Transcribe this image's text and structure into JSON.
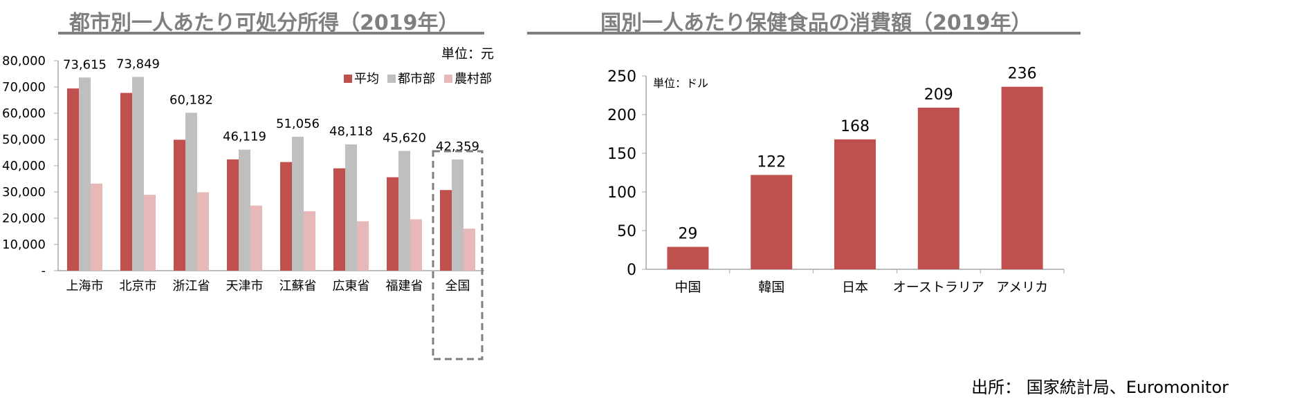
{
  "source": "出所： 国家統計局、Euromonitor",
  "colors": {
    "avg": "#c0504d",
    "urban": "#bfbfbf",
    "rural": "#e6b9b8",
    "axis": "#a6a6a6",
    "title": "#7f7f7f"
  },
  "chart_data": [
    {
      "type": "bar",
      "title": "都市別一人あたり可処分所得（2019年）",
      "unit": "単位：元",
      "categories": [
        "上海市",
        "北京市",
        "浙江省",
        "天津市",
        "江蘇省",
        "広東省",
        "福建省",
        "全国"
      ],
      "series": [
        {
          "name": "平均",
          "values": [
            69442,
            67756,
            49899,
            42404,
            41400,
            39014,
            35616,
            30733
          ]
        },
        {
          "name": "都市部",
          "values": [
            73615,
            73849,
            60182,
            46119,
            51056,
            48118,
            45620,
            42359
          ]
        },
        {
          "name": "農村部",
          "values": [
            33195,
            28928,
            29876,
            24804,
            22675,
            18818,
            19568,
            16021
          ]
        }
      ],
      "labeled_series": "都市部",
      "data_labels": [
        "73,615",
        "73,849",
        "60,182",
        "46,119",
        "51,056",
        "48,118",
        "45,620",
        "42,359"
      ],
      "y_ticks": [
        "-",
        "10,000",
        "20,000",
        "30,000",
        "40,000",
        "50,000",
        "60,000",
        "70,000",
        "80,000"
      ],
      "ylim": [
        0,
        80000
      ],
      "legend_position": "top-right",
      "highlight_category": "全国"
    },
    {
      "type": "bar",
      "title": "国別一人あたり保健食品の消費額（2019年）",
      "unit": "単位：ドル",
      "categories": [
        "中国",
        "韓国",
        "日本",
        "オーストラリア",
        "アメリカ"
      ],
      "values": [
        29,
        122,
        168,
        209,
        236
      ],
      "data_labels": [
        "29",
        "122",
        "168",
        "209",
        "236"
      ],
      "y_ticks": [
        "0",
        "50",
        "100",
        "150",
        "200",
        "250"
      ],
      "ylim": [
        0,
        250
      ]
    }
  ]
}
